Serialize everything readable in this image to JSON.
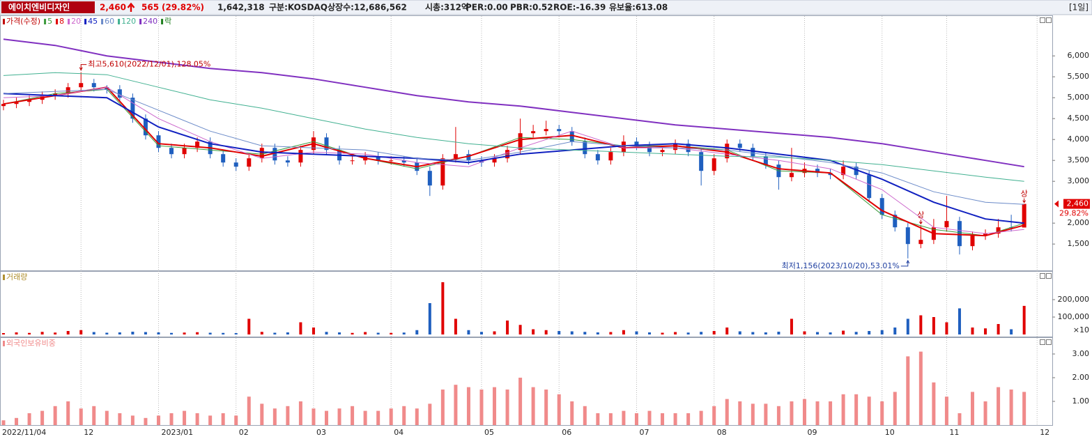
{
  "header": {
    "name": "에이치엔비디자인",
    "price": "2,460",
    "change": "565",
    "change_pct": "(29.82%)",
    "volume": "1,642,318",
    "items": [
      "구분:KOSDAQ",
      "상장수:12,686,562",
      "시총:312억",
      "PER:0.00",
      "PBR:0.52",
      "ROE:-16.39",
      "유보율:613.08"
    ],
    "period": "[1일]"
  },
  "chart_data": {
    "type": "candlestick",
    "categories": [
      "2022/11/04",
      null,
      null,
      null,
      null,
      null,
      "12",
      null,
      null,
      null,
      null,
      null,
      "2023/01",
      null,
      null,
      null,
      null,
      null,
      "02",
      null,
      null,
      null,
      null,
      null,
      "03",
      null,
      null,
      null,
      null,
      null,
      "04",
      null,
      null,
      null,
      null,
      null,
      null,
      "05",
      null,
      null,
      null,
      null,
      null,
      "06",
      null,
      null,
      null,
      null,
      null,
      "07",
      null,
      null,
      null,
      null,
      null,
      "08",
      null,
      null,
      null,
      null,
      null,
      null,
      "09",
      null,
      null,
      null,
      null,
      null,
      "10",
      null,
      null,
      null,
      null,
      "11",
      null,
      null,
      null,
      null,
      null,
      null,
      "12"
    ],
    "grid": true,
    "price": {
      "title": "가격(수정)",
      "up_color": "#e00000",
      "down_color": "#1f5fbf",
      "ylim": [
        870,
        6970
      ],
      "yticks": [
        {
          "value": 1500,
          "label": "1,500"
        },
        {
          "value": 2000,
          "label": "2,000"
        },
        {
          "value": 3000,
          "label": "3,000"
        },
        {
          "value": 3500,
          "label": "3,500"
        },
        {
          "value": 4000,
          "label": "4,000"
        },
        {
          "value": 4500,
          "label": "4,500"
        },
        {
          "value": 5000,
          "label": "5,000"
        },
        {
          "value": 5500,
          "label": "5,500"
        },
        {
          "value": 6000,
          "label": "6,000"
        }
      ],
      "candles": [
        [
          4800,
          4950,
          4700,
          4850
        ],
        [
          4850,
          5000,
          4750,
          4900
        ],
        [
          4900,
          5050,
          4800,
          4950
        ],
        [
          4950,
          5150,
          4850,
          5050
        ],
        [
          5050,
          5200,
          4950,
          5100
        ],
        [
          5100,
          5350,
          5000,
          5250
        ],
        [
          5250,
          5610,
          5150,
          5350
        ],
        [
          5350,
          5450,
          5150,
          5250
        ],
        [
          5250,
          5300,
          5100,
          5200
        ],
        [
          5200,
          5300,
          4900,
          5000
        ],
        [
          5000,
          5100,
          4400,
          4500
        ],
        [
          4500,
          4600,
          4000,
          4100
        ],
        [
          4100,
          4200,
          3700,
          3800
        ],
        [
          3800,
          3900,
          3550,
          3650
        ],
        [
          3650,
          3900,
          3550,
          3800
        ],
        [
          3800,
          4050,
          3700,
          3950
        ],
        [
          3950,
          4050,
          3550,
          3650
        ],
        [
          3650,
          3750,
          3350,
          3450
        ],
        [
          3450,
          3550,
          3250,
          3350
        ],
        [
          3350,
          3650,
          3250,
          3550
        ],
        [
          3550,
          3900,
          3450,
          3800
        ],
        [
          3800,
          3900,
          3400,
          3500
        ],
        [
          3500,
          3600,
          3350,
          3450
        ],
        [
          3450,
          3850,
          3350,
          3750
        ],
        [
          3750,
          4200,
          3650,
          4050
        ],
        [
          4050,
          4150,
          3650,
          3750
        ],
        [
          3750,
          3850,
          3400,
          3500
        ],
        [
          3500,
          3600,
          3400,
          3500
        ],
        [
          3500,
          3700,
          3400,
          3600
        ],
        [
          3600,
          3700,
          3400,
          3500
        ],
        [
          3500,
          3600,
          3400,
          3500
        ],
        [
          3500,
          3600,
          3350,
          3450
        ],
        [
          3450,
          3550,
          3150,
          3250
        ],
        [
          3250,
          3350,
          2650,
          2900
        ],
        [
          2900,
          3650,
          2800,
          3550
        ],
        [
          3550,
          4300,
          3450,
          3650
        ],
        [
          3650,
          3750,
          3400,
          3500
        ],
        [
          3500,
          3600,
          3350,
          3450
        ],
        [
          3450,
          3650,
          3350,
          3550
        ],
        [
          3550,
          3850,
          3450,
          3750
        ],
        [
          3750,
          4500,
          3650,
          4150
        ],
        [
          4150,
          4350,
          4050,
          4200
        ],
        [
          4200,
          4450,
          4100,
          4250
        ],
        [
          4250,
          4350,
          4100,
          4200
        ],
        [
          4200,
          4300,
          3850,
          3950
        ],
        [
          3950,
          4050,
          3550,
          3650
        ],
        [
          3650,
          3750,
          3400,
          3500
        ],
        [
          3500,
          3800,
          3400,
          3700
        ],
        [
          3700,
          4100,
          3600,
          3950
        ],
        [
          3950,
          4050,
          3750,
          3850
        ],
        [
          3850,
          3950,
          3600,
          3700
        ],
        [
          3700,
          3850,
          3600,
          3750
        ],
        [
          3750,
          4000,
          3650,
          3900
        ],
        [
          3900,
          4000,
          3600,
          3700
        ],
        [
          3700,
          3800,
          2900,
          3250
        ],
        [
          3250,
          3650,
          3150,
          3550
        ],
        [
          3550,
          4000,
          3450,
          3900
        ],
        [
          3900,
          4000,
          3700,
          3800
        ],
        [
          3800,
          3900,
          3500,
          3600
        ],
        [
          3600,
          3700,
          3300,
          3400
        ],
        [
          3400,
          3500,
          2800,
          3100
        ],
        [
          3100,
          3800,
          3000,
          3200
        ],
        [
          3200,
          3450,
          3100,
          3300
        ],
        [
          3300,
          3400,
          3100,
          3200
        ],
        [
          3200,
          3300,
          3050,
          3150
        ],
        [
          3150,
          3500,
          3050,
          3350
        ],
        [
          3350,
          3450,
          3050,
          3150
        ],
        [
          3150,
          3250,
          2500,
          2600
        ],
        [
          2600,
          2700,
          2100,
          2200
        ],
        [
          2200,
          2300,
          1800,
          1900
        ],
        [
          1900,
          2000,
          1156,
          1500
        ],
        [
          1500,
          1950,
          1400,
          1600
        ],
        [
          1600,
          2100,
          1500,
          1900
        ],
        [
          1900,
          2650,
          1800,
          2050
        ],
        [
          2050,
          2150,
          1250,
          1450
        ],
        [
          1450,
          1800,
          1350,
          1700
        ],
        [
          1700,
          1850,
          1600,
          1750
        ],
        [
          1750,
          2100,
          1650,
          1900
        ],
        [
          1900,
          2200,
          1800,
          1895
        ],
        [
          1895,
          2460,
          1895,
          2460
        ],
        null
      ],
      "moving_averages": {
        "x": [
          0,
          4,
          8,
          12,
          16,
          20,
          24,
          28,
          32,
          36,
          40,
          44,
          48,
          52,
          56,
          60,
          64,
          68,
          72,
          76,
          79
        ],
        "series": [
          {
            "name": "5",
            "color": "#3a9a3a",
            "width": 1,
            "values": [
              4850,
              5100,
              5200,
              3850,
              3750,
              3650,
              3950,
              3550,
              3300,
              3600,
              4050,
              4000,
              3850,
              3850,
              3750,
              3250,
              3200,
              2200,
              1850,
              1700,
              2000
            ]
          },
          {
            "name": "8",
            "color": "#e00000",
            "width": 2,
            "values": [
              4850,
              5050,
              5250,
              3900,
              3800,
              3600,
              3900,
              3550,
              3350,
              3600,
              4000,
              4100,
              3800,
              3850,
              3700,
              3300,
              3200,
              2300,
              1750,
              1700,
              1950
            ]
          },
          {
            "name": "20",
            "color": "#cc66cc",
            "width": 1,
            "values": [
              5000,
              5050,
              5250,
              4500,
              3950,
              3550,
              3700,
              3650,
              3450,
              3350,
              3800,
              4200,
              3800,
              3800,
              3650,
              3500,
              3300,
              2800,
              1900,
              1750,
              1850
            ]
          },
          {
            "name": "45",
            "color": "#1020c0",
            "width": 2,
            "values": [
              5100,
              5050,
              5000,
              4300,
              3900,
              3700,
              3650,
              3600,
              3550,
              3450,
              3650,
              3750,
              3850,
              3900,
              3800,
              3650,
              3500,
              3050,
              2500,
              2100,
              2000
            ]
          },
          {
            "name": "60",
            "color": "#6a8ac8",
            "width": 1,
            "values": [
              5100,
              5150,
              5200,
              4700,
              4200,
              3850,
              3800,
              3750,
              3550,
              3500,
              3700,
              3950,
              3850,
              3800,
              3750,
              3600,
              3450,
              3200,
              2750,
              2500,
              2450
            ]
          },
          {
            "name": "120",
            "color": "#40b090",
            "width": 1,
            "values": [
              5530,
              5600,
              5550,
              5250,
              4950,
              4750,
              4500,
              4250,
              4050,
              3900,
              3800,
              3750,
              3700,
              3650,
              3600,
              3580,
              3500,
              3400,
              3250,
              3100,
              3000
            ]
          },
          {
            "name": "240",
            "color": "#8030c0",
            "width": 2,
            "values": [
              6400,
              6250,
              6000,
              5850,
              5700,
              5600,
              5450,
              5250,
              5050,
              4900,
              4800,
              4650,
              4500,
              4350,
              4250,
              4150,
              4050,
              3900,
              3700,
              3500,
              3350
            ]
          }
        ]
      },
      "ex_rights_label": "락",
      "ex_rights_color": "#208020",
      "annotations": {
        "high": {
          "index": 6,
          "text": "최고5,610(2022/12/01),128.05%"
        },
        "low": {
          "index": 70,
          "text": "최저1,156(2023/10/20),53.01%"
        },
        "limit_up": [
          {
            "index": 71,
            "label": "상"
          },
          {
            "index": 79,
            "label": "상"
          }
        ]
      },
      "last_tag": {
        "price": "2,460",
        "change": "29.82%"
      }
    },
    "volume": {
      "title": "거래량",
      "unit_label": "×10",
      "ylim": [
        0,
        352000
      ],
      "yticks": [
        {
          "value": 100000,
          "label": "100,000"
        },
        {
          "value": 200000,
          "label": "200,000"
        }
      ],
      "values": [
        8000,
        12000,
        9000,
        15000,
        11000,
        20000,
        25000,
        14000,
        10000,
        12000,
        16000,
        14000,
        12000,
        9000,
        11000,
        13000,
        10000,
        9000,
        8000,
        90000,
        15000,
        10000,
        12000,
        70000,
        40000,
        15000,
        12000,
        9000,
        14000,
        10000,
        9000,
        11000,
        25000,
        180000,
        300000,
        90000,
        25000,
        15000,
        18000,
        80000,
        55000,
        30000,
        25000,
        20000,
        18000,
        15000,
        12000,
        14000,
        25000,
        18000,
        12000,
        10000,
        14000,
        11000,
        15000,
        20000,
        40000,
        18000,
        14000,
        12000,
        16000,
        90000,
        18000,
        14000,
        12000,
        22000,
        15000,
        20000,
        25000,
        40000,
        90000,
        110000,
        100000,
        70000,
        150000,
        40000,
        35000,
        60000,
        30000,
        164232,
        null
      ]
    },
    "foreign": {
      "title": "외국인보유비중",
      "color": "#f08a8a",
      "ylim": [
        0,
        3.6
      ],
      "yticks": [
        {
          "value": 1,
          "label": "1.00"
        },
        {
          "value": 2,
          "label": "2.00"
        },
        {
          "value": 3,
          "label": "3.00"
        }
      ],
      "values": [
        0.2,
        0.3,
        0.5,
        0.6,
        0.8,
        1.0,
        0.7,
        0.8,
        0.6,
        0.5,
        0.4,
        0.3,
        0.4,
        0.5,
        0.6,
        0.5,
        0.4,
        0.5,
        0.4,
        1.2,
        0.9,
        0.7,
        0.8,
        1.0,
        0.7,
        0.6,
        0.7,
        0.8,
        0.6,
        0.6,
        0.7,
        0.8,
        0.7,
        0.9,
        1.5,
        1.7,
        1.6,
        1.5,
        1.6,
        1.5,
        2.0,
        1.6,
        1.5,
        1.3,
        1.0,
        0.8,
        0.5,
        0.5,
        0.6,
        0.5,
        0.6,
        0.5,
        0.5,
        0.5,
        0.6,
        0.8,
        1.1,
        1.0,
        0.9,
        0.9,
        0.8,
        1.0,
        1.1,
        1.0,
        1.0,
        1.3,
        1.3,
        1.2,
        1.0,
        1.4,
        2.9,
        3.1,
        1.8,
        1.2,
        0.5,
        1.4,
        1.0,
        1.6,
        1.5,
        1.4,
        null
      ]
    }
  }
}
